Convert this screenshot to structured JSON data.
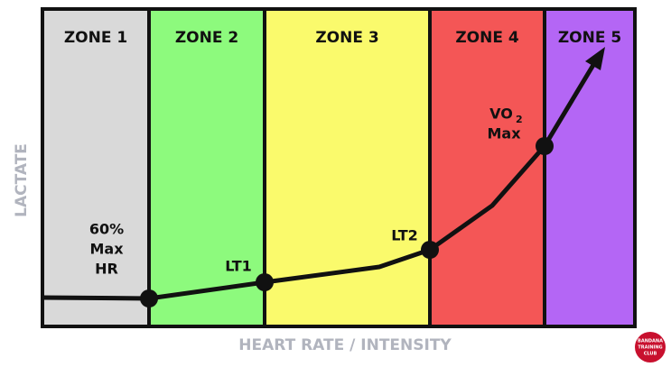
{
  "zones": [
    {
      "label": "ZONE 1",
      "color": "#d9d9d9"
    },
    {
      "label": "ZONE 2",
      "color": "#8dfa7d"
    },
    {
      "label": "ZONE 3",
      "color": "#fafa6c"
    },
    {
      "label": "ZONE 4",
      "color": "#f45656"
    },
    {
      "label": "ZONE 5",
      "color": "#b466f5"
    }
  ],
  "points": [
    {
      "lines": [
        "60%",
        "Max",
        "HR"
      ]
    },
    {
      "lines": [
        "LT1"
      ]
    },
    {
      "lines": [
        "LT2"
      ]
    },
    {
      "lines": [
        "VO",
        "Max"
      ],
      "subscript": "2"
    }
  ],
  "y_axis_label": "LACTATE",
  "x_axis_label": "HEART RATE / INTENSITY",
  "logo": {
    "lines": [
      "BANDANA",
      "TRAINING",
      "CLUB"
    ]
  }
}
